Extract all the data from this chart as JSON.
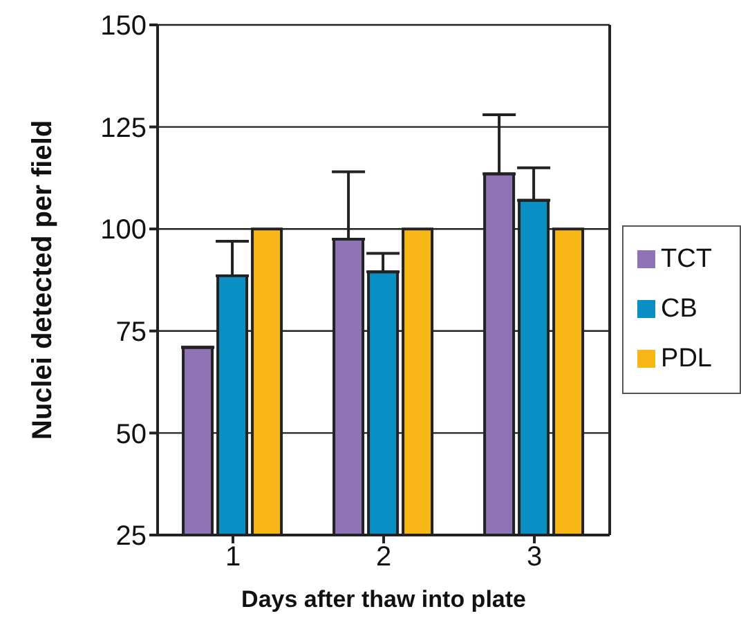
{
  "chart_data": {
    "type": "bar",
    "xlabel": "Days after thaw into plate",
    "ylabel": "Nuclei detected per field",
    "categories": [
      "1",
      "2",
      "3"
    ],
    "series": [
      {
        "name": "TCT",
        "color": "#8e74b4",
        "values": [
          71,
          97.5,
          113.5
        ],
        "errors": [
          null,
          [
            97.5,
            114
          ],
          [
            113.5,
            128
          ]
        ]
      },
      {
        "name": "CB",
        "color": "#0a8fc4",
        "values": [
          88.5,
          89.5,
          107
        ],
        "errors": [
          [
            88.5,
            97
          ],
          [
            89.5,
            94
          ],
          [
            107,
            115
          ]
        ]
      },
      {
        "name": "PDL",
        "color": "#f7b817",
        "values": [
          100,
          100,
          100
        ]
      }
    ],
    "ylim": [
      25,
      150
    ],
    "yticks": [
      25,
      50,
      75,
      100,
      125,
      150
    ],
    "grid": "y",
    "legend": "right"
  }
}
